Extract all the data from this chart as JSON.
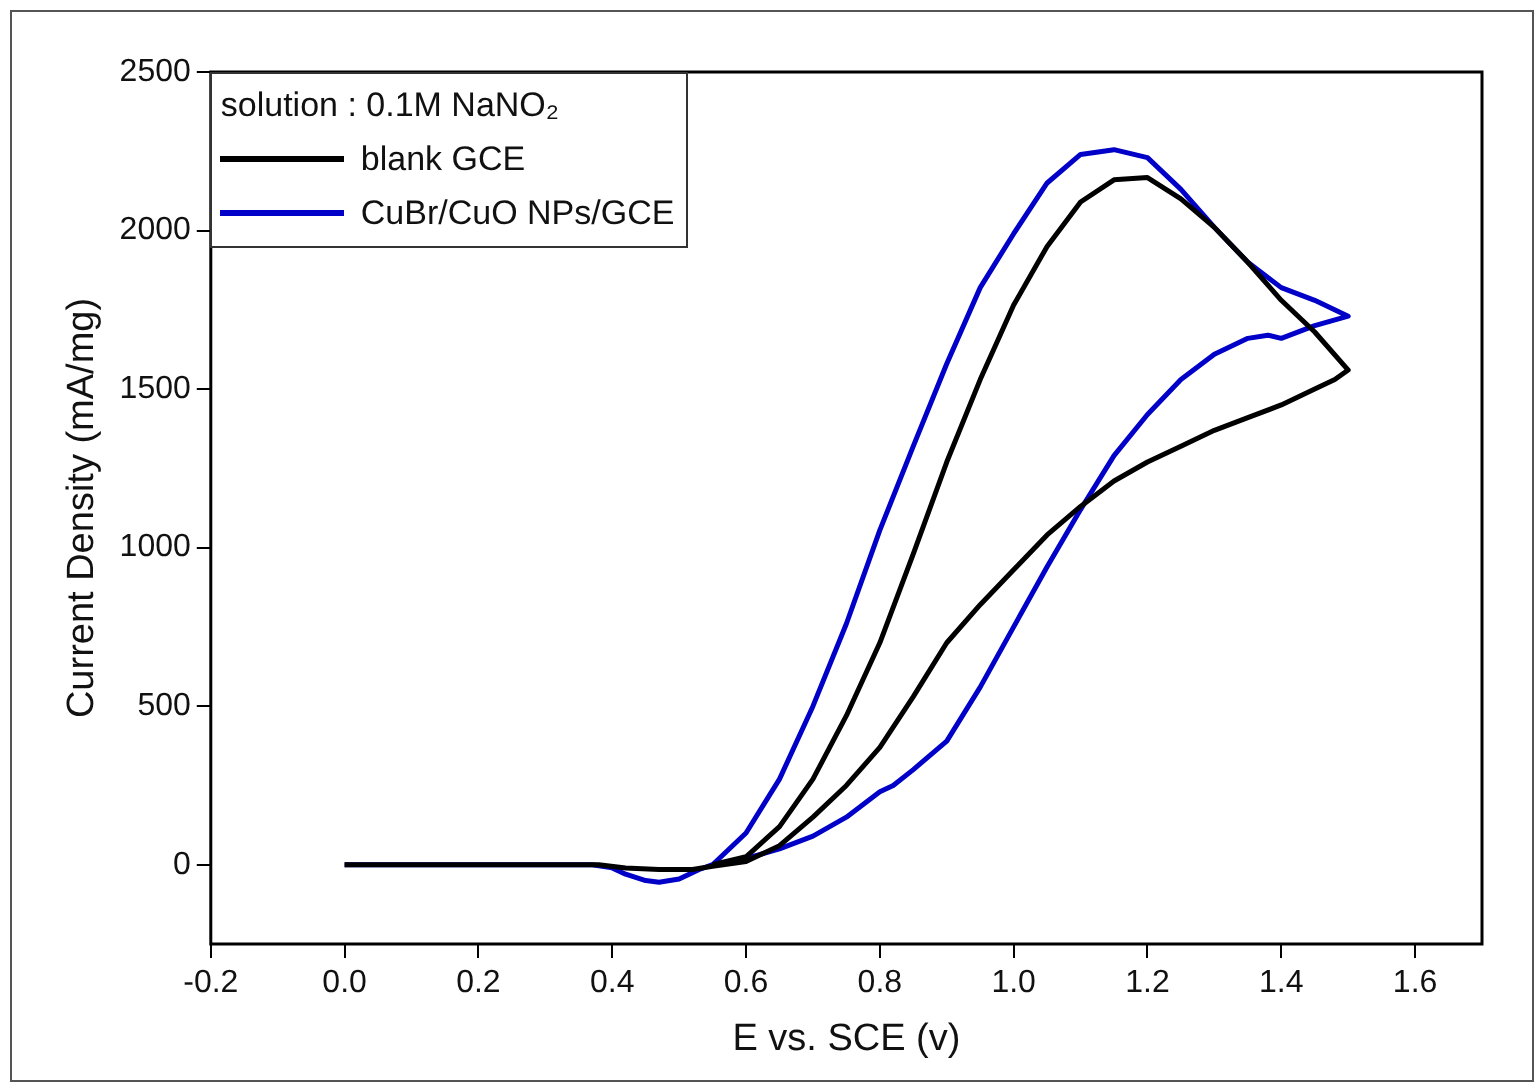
{
  "chart_data": {
    "type": "line",
    "xlabel": "E vs. SCE (v)",
    "ylabel": "Current Density (mA/mg)",
    "legend_title": "solution : 0.1M NaNO₂",
    "legend": "top left",
    "xlim": [
      -0.2,
      1.7
    ],
    "xticks": [
      {
        "value": -0.2,
        "label": "-0.2"
      },
      {
        "value": 0,
        "label": "0.0"
      },
      {
        "value": 0.2,
        "label": "0.2"
      },
      {
        "value": 0.4,
        "label": "0.4"
      },
      {
        "value": 0.6,
        "label": "0.6"
      },
      {
        "value": 0.8,
        "label": "0.8"
      },
      {
        "value": 1,
        "label": "1.0"
      },
      {
        "value": 1.2,
        "label": "1.2"
      },
      {
        "value": 1.4,
        "label": "1.4"
      },
      {
        "value": 1.6,
        "label": "1.6"
      }
    ],
    "ylim": [
      -250,
      2500
    ],
    "yticks": [
      0,
      500,
      1000,
      1500,
      2000,
      2500
    ],
    "series": [
      {
        "name": "blank GCE",
        "color": "#000000",
        "x": [
          0,
          0.2,
          0.38,
          0.42,
          0.47,
          0.52,
          0.55,
          0.6,
          0.65,
          0.7,
          0.75,
          0.8,
          0.85,
          0.9,
          0.95,
          1.0,
          1.05,
          1.1,
          1.15,
          1.2,
          1.25,
          1.3,
          1.35,
          1.4,
          1.45,
          1.48,
          1.5,
          1.45,
          1.4,
          1.35,
          1.3,
          1.25,
          1.2,
          1.15,
          1.1,
          1.05,
          1.0,
          0.95,
          0.9,
          0.85,
          0.8,
          0.75,
          0.7,
          0.65,
          0.6,
          0.55
        ],
        "values": [
          0,
          0,
          0,
          -10,
          -15,
          -15,
          -5,
          10,
          60,
          150,
          250,
          370,
          530,
          700,
          820,
          930,
          1040,
          1130,
          1210,
          1270,
          1320,
          1370,
          1410,
          1450,
          1500,
          1530,
          1560,
          1680,
          1780,
          1900,
          2010,
          2100,
          2167,
          2160,
          2090,
          1950,
          1765,
          1530,
          1270,
          980,
          700,
          470,
          270,
          120,
          25,
          0
        ]
      },
      {
        "name": "CuBr/CuO NPs/GCE",
        "color": "#0000c8",
        "x": [
          0,
          0.2,
          0.37,
          0.4,
          0.42,
          0.45,
          0.47,
          0.5,
          0.53,
          0.55,
          0.6,
          0.65,
          0.7,
          0.75,
          0.8,
          0.82,
          0.85,
          0.9,
          0.95,
          1.0,
          1.05,
          1.1,
          1.15,
          1.2,
          1.25,
          1.3,
          1.35,
          1.38,
          1.4,
          1.45,
          1.5,
          1.45,
          1.4,
          1.35,
          1.3,
          1.25,
          1.2,
          1.15,
          1.1,
          1.05,
          1.0,
          0.95,
          0.9,
          0.85,
          0.8,
          0.75,
          0.7,
          0.65,
          0.6,
          0.55
        ],
        "values": [
          0,
          0,
          0,
          -10,
          -30,
          -50,
          -55,
          -45,
          -15,
          0,
          20,
          50,
          90,
          150,
          230,
          250,
          300,
          390,
          560,
          750,
          940,
          1120,
          1290,
          1420,
          1530,
          1610,
          1660,
          1670,
          1660,
          1700,
          1730,
          1780,
          1820,
          1900,
          2010,
          2130,
          2230,
          2255,
          2240,
          2150,
          1990,
          1820,
          1580,
          1320,
          1055,
          760,
          500,
          270,
          100,
          0
        ]
      }
    ]
  }
}
